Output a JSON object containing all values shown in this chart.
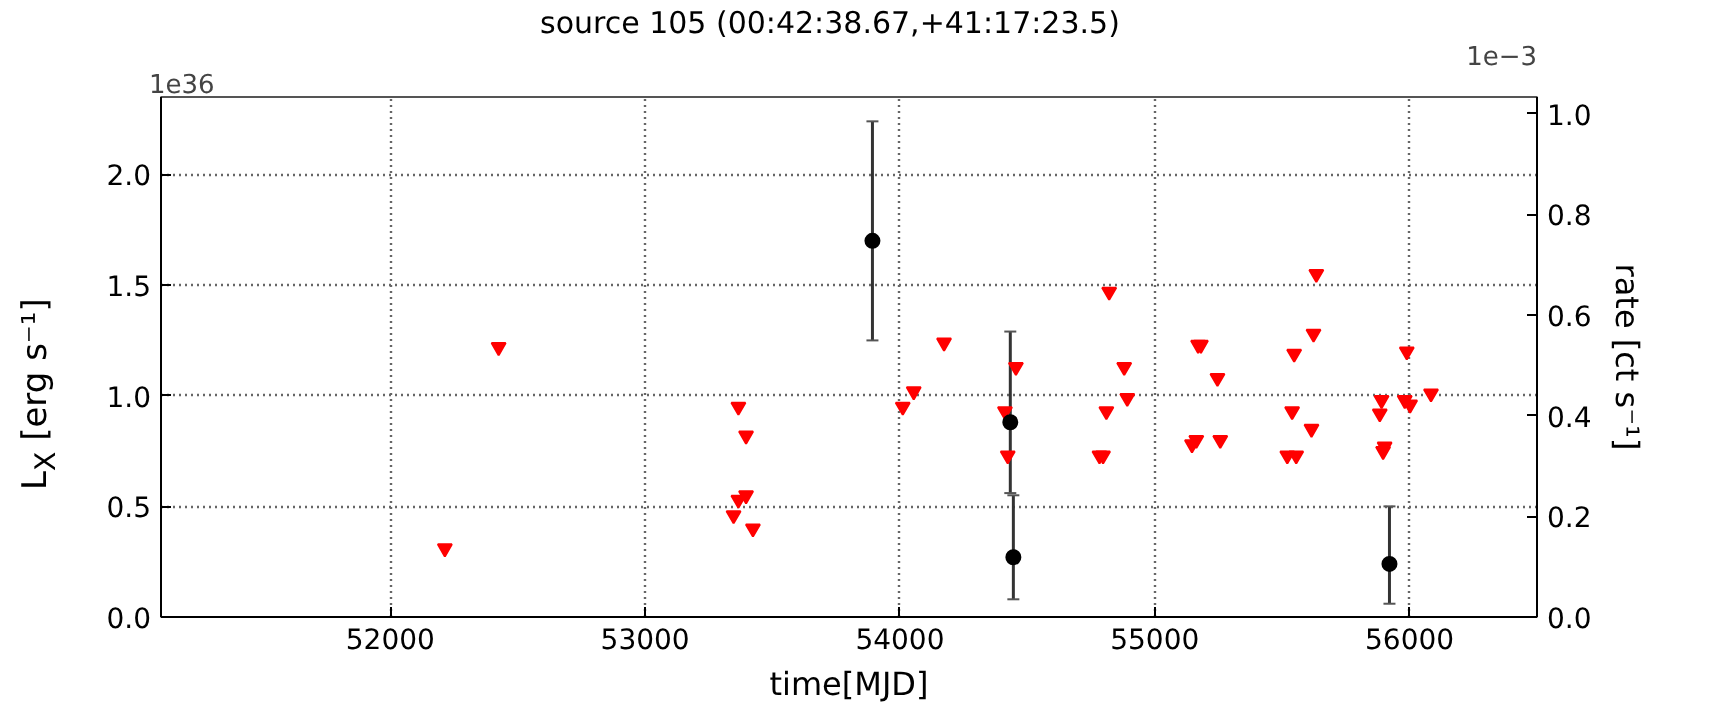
{
  "chart_data": {
    "type": "scatter",
    "title": "source 105     (00:42:38.67,+41:17:23.5)",
    "xlabel": "time[MJD]",
    "ylabel": "L$_{X}$ [erg s⁻¹]",
    "y2label": "rate [ct s⁻¹]",
    "annotations": [
      "1e36",
      "1e−3"
    ],
    "xlim": [
      51100,
      56500
    ],
    "xticks": [
      52000,
      53000,
      54000,
      55000,
      56000
    ],
    "ylim": [
      0,
      2.35
    ],
    "yticks": [
      {
        "value": 0,
        "label": "0.0"
      },
      {
        "value": 0.5,
        "label": "0.5"
      },
      {
        "value": 1,
        "label": "1.0"
      },
      {
        "value": 1.5,
        "label": "1.5"
      },
      {
        "value": 2,
        "label": "2.0"
      }
    ],
    "y2lim": [
      0,
      1.033
    ],
    "y2ticks": [
      {
        "value": 0,
        "label": "0.0"
      },
      {
        "value": 0.2,
        "label": "0.2"
      },
      {
        "value": 0.4,
        "label": "0.4"
      },
      {
        "value": 0.6,
        "label": "0.6"
      },
      {
        "value": 0.8,
        "label": "0.8"
      },
      {
        "value": 1,
        "label": "1.0"
      }
    ],
    "grid": true,
    "line_style": "dotted",
    "series": [
      {
        "color": "#ff0000",
        "marker": "triangle",
        "x": [
          52214,
          52425,
          53366,
          53396,
          53366,
          53396,
          53347,
          53423,
          54011,
          54054,
          54173,
          54412,
          54423,
          54455,
          54821,
          54880,
          54892,
          54810,
          54783,
          54797,
          55181,
          55170,
          55246,
          55146,
          55163,
          55257,
          55634,
          55623,
          55547,
          55539,
          55615,
          55520,
          55555,
          55890,
          55883,
          55902,
          55896,
          55989,
          55981,
          56002,
          56084
        ],
        "values": [
          0.31,
          1.22,
          0.95,
          0.82,
          0.53,
          0.55,
          0.46,
          0.4,
          0.95,
          1.02,
          1.24,
          0.93,
          0.73,
          1.13,
          1.47,
          1.13,
          0.99,
          0.93,
          0.73,
          0.73,
          1.23,
          1.23,
          1.08,
          0.78,
          0.8,
          0.8,
          1.55,
          1.28,
          1.19,
          0.93,
          0.85,
          0.73,
          0.73,
          0.98,
          0.92,
          0.77,
          0.75,
          1.2,
          0.98,
          0.96,
          1.01
        ]
      },
      {
        "color": "#000000",
        "marker": "circle",
        "x": [
          53892,
          54433,
          54445,
          55921
        ],
        "values": [
          1.7,
          0.88,
          0.27,
          0.24
        ],
        "errors": [
          [
            1.25,
            2.24
          ],
          [
            0.56,
            1.29
          ],
          [
            0.08,
            0.55
          ],
          [
            0.06,
            0.5
          ]
        ]
      }
    ]
  }
}
